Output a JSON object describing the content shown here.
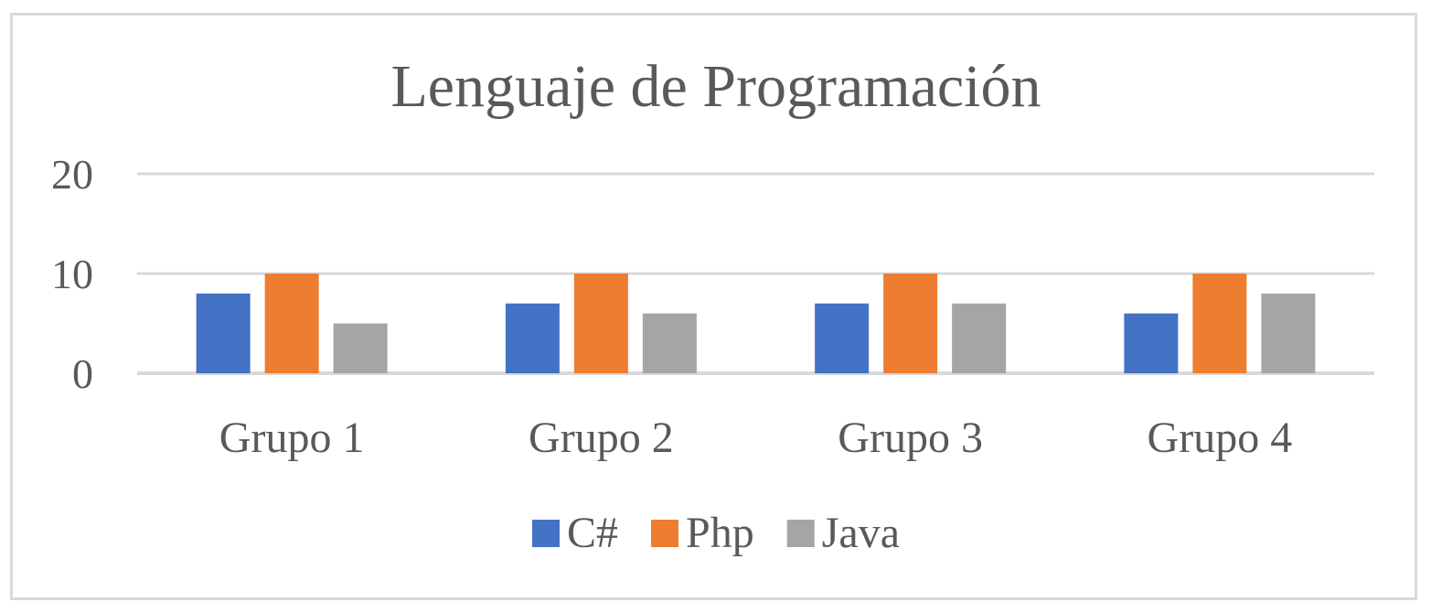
{
  "chart_data": {
    "type": "bar",
    "title": "Lenguaje de Programación",
    "xlabel": "",
    "ylabel": "",
    "categories": [
      "Grupo 1",
      "Grupo 2",
      "Grupo 3",
      "Grupo 4"
    ],
    "series": [
      {
        "name": "C#",
        "color": "#4472c4",
        "values": [
          8,
          7,
          7,
          6
        ]
      },
      {
        "name": "Php",
        "color": "#ed7d31",
        "values": [
          10,
          10,
          10,
          10
        ]
      },
      {
        "name": "Java",
        "color": "#a5a5a5",
        "values": [
          5,
          6,
          7,
          8
        ]
      }
    ],
    "ylim": [
      0,
      20
    ],
    "yticks": [
      "0",
      "10",
      "20"
    ],
    "grid": true,
    "legend": "bottom"
  }
}
